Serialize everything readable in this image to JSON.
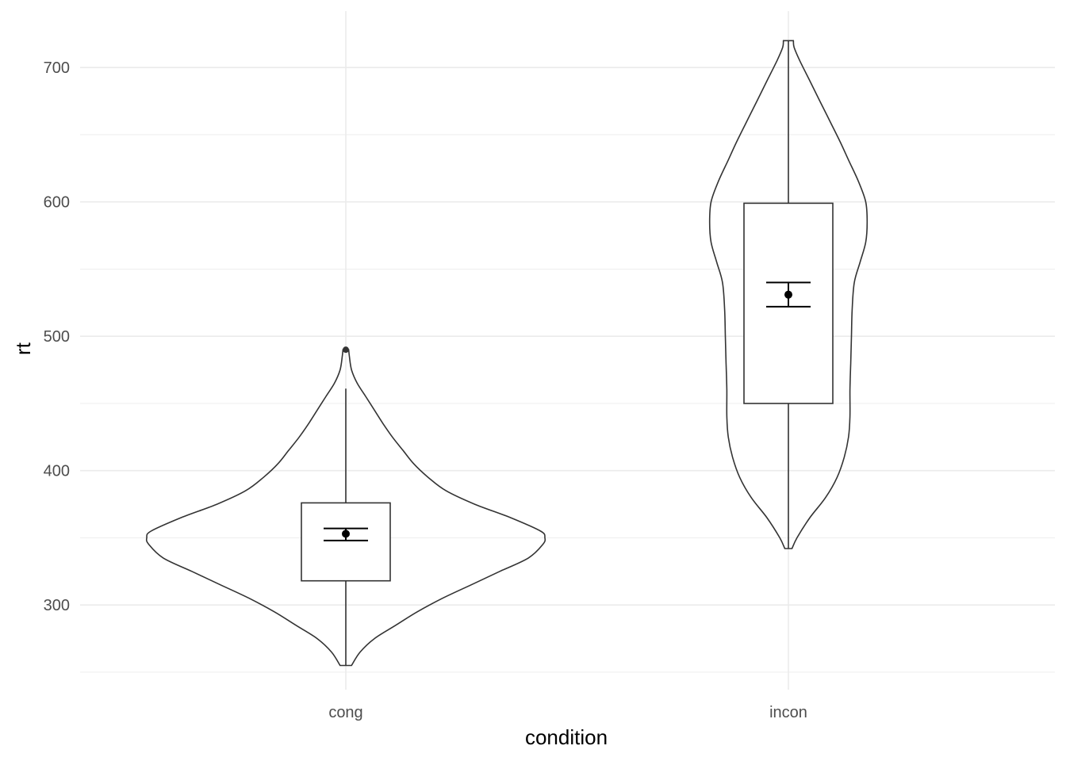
{
  "chart_data": {
    "type": "violin",
    "xlabel": "condition",
    "ylabel": "rt",
    "categories": [
      "cong",
      "incon"
    ],
    "y_ticks": [
      "300",
      "400",
      "500",
      "600",
      "700"
    ],
    "ylim": [
      237,
      742
    ],
    "grid": true,
    "groups": [
      {
        "name": "cong",
        "violin": {
          "min": 255,
          "max": 490,
          "density": [
            [
              255,
              0.08
            ],
            [
              265,
              0.2
            ],
            [
              275,
              0.4
            ],
            [
              285,
              0.7
            ],
            [
              295,
              1.0
            ],
            [
              305,
              1.35
            ],
            [
              315,
              1.75
            ],
            [
              325,
              2.15
            ],
            [
              335,
              2.55
            ],
            [
              345,
              2.75
            ],
            [
              350,
              2.78
            ],
            [
              355,
              2.72
            ],
            [
              365,
              2.3
            ],
            [
              375,
              1.8
            ],
            [
              385,
              1.4
            ],
            [
              395,
              1.15
            ],
            [
              405,
              0.95
            ],
            [
              415,
              0.8
            ],
            [
              425,
              0.65
            ],
            [
              435,
              0.52
            ],
            [
              445,
              0.4
            ],
            [
              455,
              0.28
            ],
            [
              465,
              0.16
            ],
            [
              475,
              0.08
            ],
            [
              485,
              0.05
            ],
            [
              490,
              0.04
            ]
          ]
        },
        "box": {
          "q1": 318,
          "median": 318,
          "q3": 376,
          "whisker_low": 255,
          "whisker_high": 461
        },
        "outliers": [
          490
        ],
        "mean": 353,
        "ci": [
          348,
          357
        ]
      },
      {
        "name": "incon",
        "violin": {
          "min": 342,
          "max": 720,
          "density": [
            [
              342,
              0.05
            ],
            [
              350,
              0.12
            ],
            [
              365,
              0.3
            ],
            [
              380,
              0.52
            ],
            [
              395,
              0.68
            ],
            [
              410,
              0.78
            ],
            [
              425,
              0.84
            ],
            [
              440,
              0.86
            ],
            [
              460,
              0.86
            ],
            [
              480,
              0.87
            ],
            [
              500,
              0.88
            ],
            [
              520,
              0.89
            ],
            [
              540,
              0.92
            ],
            [
              555,
              1.0
            ],
            [
              570,
              1.08
            ],
            [
              585,
              1.1
            ],
            [
              600,
              1.08
            ],
            [
              615,
              0.98
            ],
            [
              630,
              0.85
            ],
            [
              645,
              0.72
            ],
            [
              660,
              0.58
            ],
            [
              675,
              0.44
            ],
            [
              690,
              0.3
            ],
            [
              705,
              0.16
            ],
            [
              715,
              0.08
            ],
            [
              720,
              0.07
            ]
          ]
        },
        "box": {
          "q1": 450,
          "median": 450,
          "q3": 599,
          "whisker_low": 342,
          "whisker_high": 720
        },
        "outliers": [],
        "mean": 531,
        "ci": [
          522,
          540
        ]
      }
    ]
  }
}
